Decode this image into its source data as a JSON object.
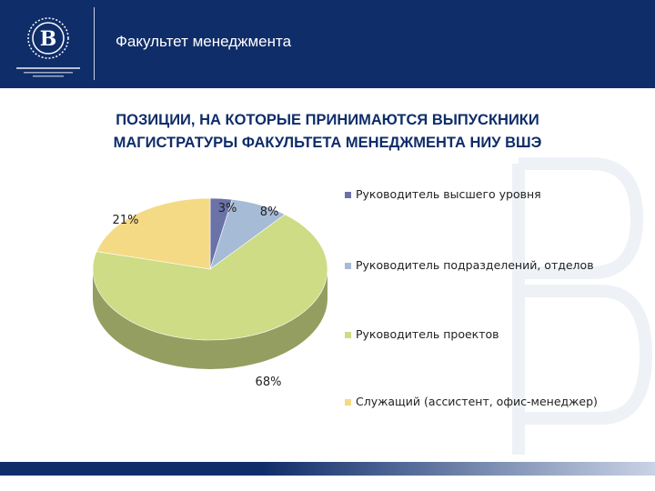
{
  "header": {
    "faculty": "Факультет менеджмента",
    "background": "#0f2d69"
  },
  "title": {
    "line1": "ПОЗИЦИИ, НА КОТОРЫЕ ПРИНИМАЮТСЯ ВЫПУСКНИКИ",
    "line2": "МАГИСТРАТУРЫ ФАКУЛЬТЕТА МЕНЕДЖМЕНТА НИУ ВШЭ"
  },
  "chart_data": {
    "type": "pie",
    "title": "",
    "labels": [
      "Руководитель высшего уровня",
      "Руководитель подразделений, отделов",
      "Руководитель проектов",
      "Служащий (ассистент, офис-менеджер)"
    ],
    "values": [
      3,
      8,
      68,
      21
    ],
    "value_labels": [
      "3%",
      "8%",
      "68%",
      "21%"
    ],
    "colors": [
      "#6a72a8",
      "#a6bbd6",
      "#cddc85",
      "#f5da85"
    ],
    "legend": "right"
  }
}
